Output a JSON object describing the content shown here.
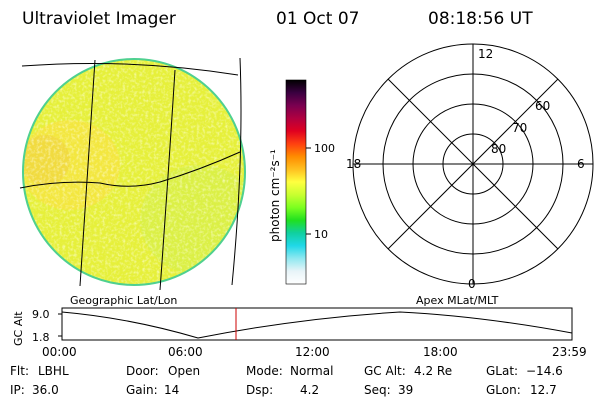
{
  "header": {
    "instrument": "Ultraviolet Imager",
    "date": "01 Oct 07",
    "time": "08:18:56 UT"
  },
  "colorbar": {
    "label": "photon cm⁻²s⁻¹",
    "ticks": [
      "100",
      "10"
    ],
    "colors": [
      "#000000",
      "#3a0040",
      "#7a0050",
      "#b00040",
      "#e00020",
      "#ff4010",
      "#ff8c00",
      "#ffc020",
      "#ffff40",
      "#c8ff30",
      "#7cff20",
      "#20e020",
      "#10d0a0",
      "#20d8e8",
      "#90e8f0",
      "#e8f4f8",
      "#ffffff"
    ]
  },
  "polar": {
    "top_label": "12",
    "bottom_label": "0",
    "left_label": "18",
    "right_label": "6",
    "ring_labels": [
      "60",
      "70",
      "80"
    ]
  },
  "timeline": {
    "left_caption": "Geographic Lat/Lon",
    "right_caption": "Apex MLat/MLT",
    "axis_label": "GC Alt",
    "y_ticks": [
      "9.0",
      "1.8"
    ],
    "x_ticks": [
      "00:00",
      "06:00",
      "12:00",
      "18:00",
      "23:59"
    ],
    "marker_color": "#cc0000"
  },
  "info": {
    "row1": [
      {
        "label": "Flt:",
        "value": "LBHL"
      },
      {
        "label": "Door:",
        "value": "Open"
      },
      {
        "label": "Mode:",
        "value": "Normal"
      },
      {
        "label": "GC Alt:",
        "value": "4.2 Re"
      },
      {
        "label": "GLat:",
        "value": "−14.6"
      }
    ],
    "row2": [
      {
        "label": "IP:",
        "value": "36.0"
      },
      {
        "label": "Gain:",
        "value": "14"
      },
      {
        "label": "Dsp:",
        "value": "4.2"
      },
      {
        "label": "Seq:",
        "value": "39"
      },
      {
        "label": "GLon:",
        "value": "12.7"
      }
    ]
  }
}
